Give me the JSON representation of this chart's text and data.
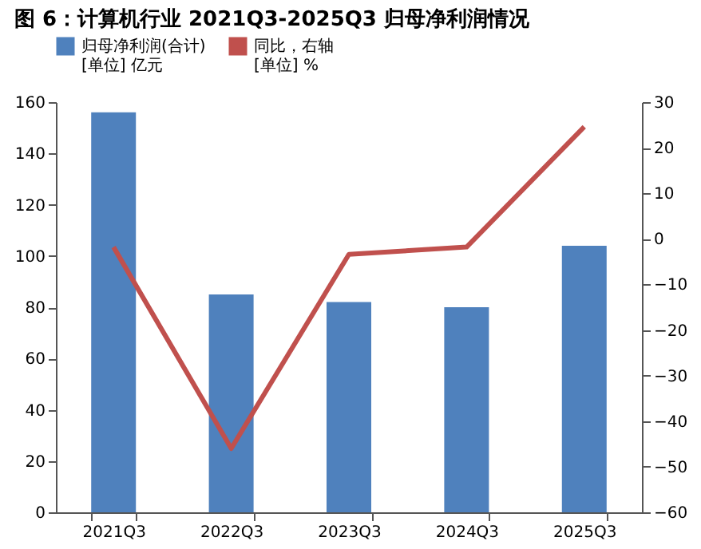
{
  "chart_data": {
    "type": "bar",
    "title": "图 6：计算机行业 2021Q3-2025Q3 归母净利润情况",
    "categories": [
      "2021Q3",
      "2022Q3",
      "2023Q3",
      "2024Q3",
      "2025Q3"
    ],
    "series": [
      {
        "name": "归母净利润(合计)\n[单位] 亿元",
        "color": "#4f81bd",
        "values": [
          156,
          85,
          82,
          80,
          104
        ]
      },
      {
        "name": "同比，右轴\n[单位] %",
        "color": "#c0504d",
        "type": "line",
        "axis": "y2",
        "values": [
          -1.8,
          -46,
          -3.4,
          -1.8,
          24.6
        ]
      }
    ],
    "ylim": [
      0,
      160
    ],
    "yticks": [
      0,
      20,
      40,
      60,
      80,
      100,
      120,
      140,
      160
    ],
    "y2lim": [
      -60,
      30
    ],
    "y2ticks": [
      -60,
      -50,
      -40,
      -30,
      -20,
      -10,
      0,
      10,
      20,
      30
    ],
    "grid": false,
    "legend": "top",
    "marker": "none",
    "line_style": "solid"
  }
}
